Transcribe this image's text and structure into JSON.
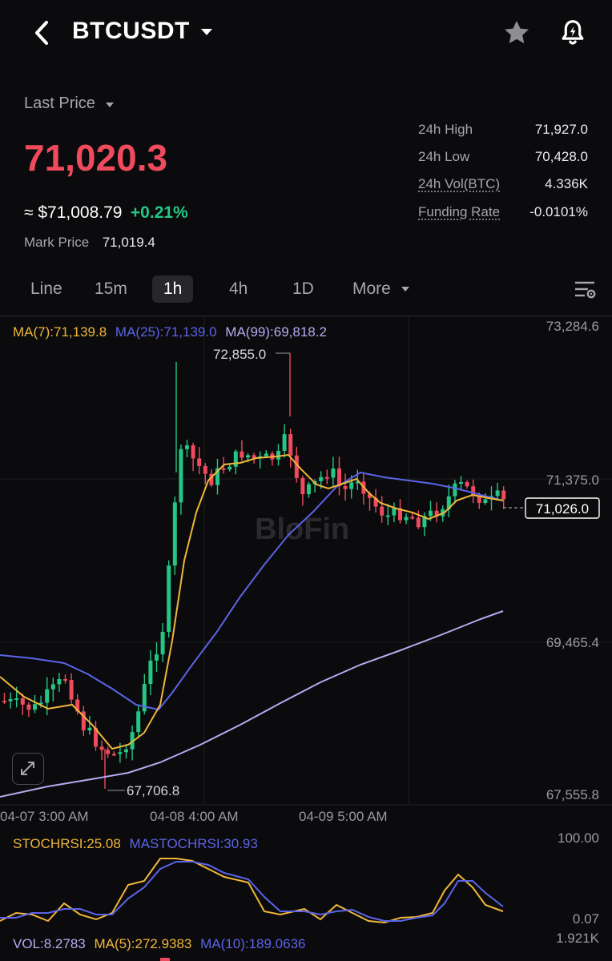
{
  "header": {
    "symbol": "BTCUSDT",
    "icons": [
      "back-chevron-icon",
      "dropdown-caret-icon",
      "star-icon",
      "price-alert-bell-icon"
    ]
  },
  "price": {
    "last_price_label": "Last Price",
    "last_price": "71,020.3",
    "usd_value": "≈ $71,008.79",
    "change_pct": "+0.21%",
    "mark_price_label": "Mark Price",
    "mark_price": "71,019.4"
  },
  "stats": [
    {
      "label": "24h High",
      "value": "71,927.0",
      "underlined": false
    },
    {
      "label": "24h Low",
      "value": "70,428.0",
      "underlined": false
    },
    {
      "label": "24h Vol(BTC)",
      "value": "4.336K",
      "underlined": true
    },
    {
      "label": "Funding Rate",
      "value": "-0.0101%",
      "underlined": true
    }
  ],
  "timeframes": {
    "tabs": [
      "Line",
      "15m",
      "1h",
      "4h",
      "1D",
      "More"
    ],
    "active": "1h"
  },
  "chart": {
    "ma_legend": {
      "ma7": "MA(7):71,139.8",
      "ma25": "MA(25):71,139.0",
      "ma99": "MA(99):69,818.2"
    },
    "price_axis": [
      "73,284.6",
      "71,375.0",
      "69,465.4",
      "67,555.8"
    ],
    "current_price_tag": "71,026.0",
    "high_marker": "72,855.0",
    "low_marker": "67,706.8",
    "time_axis": [
      "04-07 3:00 AM",
      "04-08 4:00 AM",
      "04-09 5:00 AM"
    ],
    "watermark": "BloFin",
    "colors": {
      "up": "#25c685",
      "down": "#ef4b5d",
      "ma7": "#f0b63a",
      "ma25": "#5b63e8",
      "ma99": "#b9a8f0"
    }
  },
  "stoch": {
    "legend_k": "STOCHRSI:25.08",
    "legend_d": "MASTOCHRSI:30.93",
    "axis_top": "100.00",
    "axis_bottom": "0.07"
  },
  "volume": {
    "legend_vol": "VOL:8.2783",
    "legend_ma5": "MA(5):272.9383",
    "legend_ma10": "MA(10):189.0636",
    "axis": "1.921K"
  }
}
